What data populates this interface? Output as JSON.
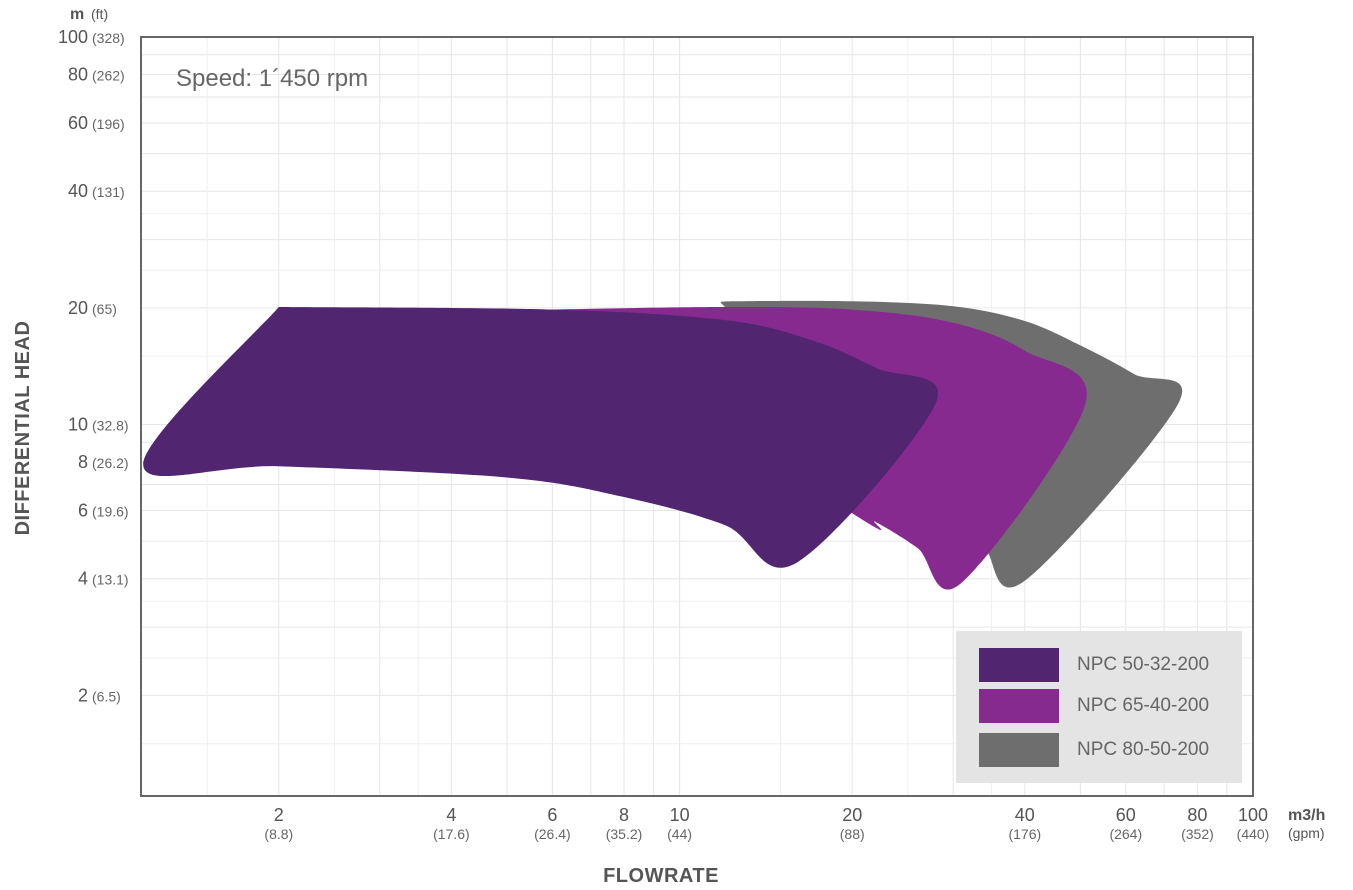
{
  "chart_data": {
    "type": "area",
    "annotation": "Speed: 1´450 rpm",
    "xlabel": "FLOWRATE",
    "ylabel": "DIFFERENTIAL HEAD",
    "x_unit": "m3/h",
    "x_unit_sub": "(gpm)",
    "y_unit": "m",
    "y_unit_sub": "(ft)",
    "x_scale": "log",
    "y_scale": "log",
    "xlim": [
      1.15,
      100
    ],
    "ylim": [
      1.1,
      100
    ],
    "grid": true,
    "legend_position": "bottom-right",
    "x_ticks": [
      {
        "value": 2,
        "label": "2",
        "sub": "(8.8)"
      },
      {
        "value": 4,
        "label": "4",
        "sub": "(17.6)"
      },
      {
        "value": 6,
        "label": "6",
        "sub": "(26.4)"
      },
      {
        "value": 8,
        "label": "8",
        "sub": "(35.2)"
      },
      {
        "value": 10,
        "label": "10",
        "sub": "(44)"
      },
      {
        "value": 20,
        "label": "20",
        "sub": "(88)"
      },
      {
        "value": 40,
        "label": "40",
        "sub": "(176)"
      },
      {
        "value": 60,
        "label": "60",
        "sub": "(264)"
      },
      {
        "value": 80,
        "label": "80",
        "sub": "(352)"
      },
      {
        "value": 100,
        "label": "100",
        "sub": "(440)"
      }
    ],
    "y_ticks": [
      {
        "value": 2,
        "label": "2",
        "sub": "(6.5)"
      },
      {
        "value": 4,
        "label": "4",
        "sub": "(13.1)"
      },
      {
        "value": 6,
        "label": "6",
        "sub": "(19.6)"
      },
      {
        "value": 8,
        "label": "8",
        "sub": "(26.2)"
      },
      {
        "value": 10,
        "label": "10",
        "sub": "(32.8)"
      },
      {
        "value": 20,
        "label": "20",
        "sub": "(65)"
      },
      {
        "value": 40,
        "label": "40",
        "sub": "(131)"
      },
      {
        "value": 60,
        "label": "60",
        "sub": "(196)"
      },
      {
        "value": 80,
        "label": "80",
        "sub": "(262)"
      },
      {
        "value": 100,
        "label": "100",
        "sub": "(328)"
      }
    ],
    "series": [
      {
        "name": "NPC 80-50-200",
        "color": "#6e6e6e",
        "outline": [
          [
            11.8,
            20.6
          ],
          [
            12.5,
            20.8
          ],
          [
            20,
            20.8
          ],
          [
            30,
            20.2
          ],
          [
            40,
            18.5
          ],
          [
            50,
            16
          ],
          [
            62,
            13.5
          ],
          [
            74,
            11.3
          ],
          [
            40,
            3.95
          ],
          [
            34,
            4.8
          ],
          [
            30,
            5.4
          ],
          [
            11.8,
            20.6
          ]
        ]
      },
      {
        "name": "NPC 65-40-200",
        "color": "#862a8f",
        "outline": [
          [
            5.8,
            19.8
          ],
          [
            12,
            20.1
          ],
          [
            20,
            19.8
          ],
          [
            30,
            18.3
          ],
          [
            40,
            15.5
          ],
          [
            51,
            11.3
          ],
          [
            31,
            3.9
          ],
          [
            26,
            4.8
          ],
          [
            22,
            5.6
          ],
          [
            20,
            5.9
          ],
          [
            5.8,
            19.8
          ]
        ]
      },
      {
        "name": "NPC 50-32-200",
        "color": "#512570",
        "outline": [
          [
            2,
            20.1
          ],
          [
            6,
            19.8
          ],
          [
            12,
            18.6
          ],
          [
            17,
            16.5
          ],
          [
            22,
            14
          ],
          [
            28,
            11.4
          ],
          [
            16,
            4.4
          ],
          [
            12,
            5.5
          ],
          [
            8,
            6.5
          ],
          [
            5,
            7.3
          ],
          [
            2,
            7.8
          ],
          [
            1.16,
            7.9
          ],
          [
            2,
            20.1
          ]
        ]
      }
    ]
  }
}
